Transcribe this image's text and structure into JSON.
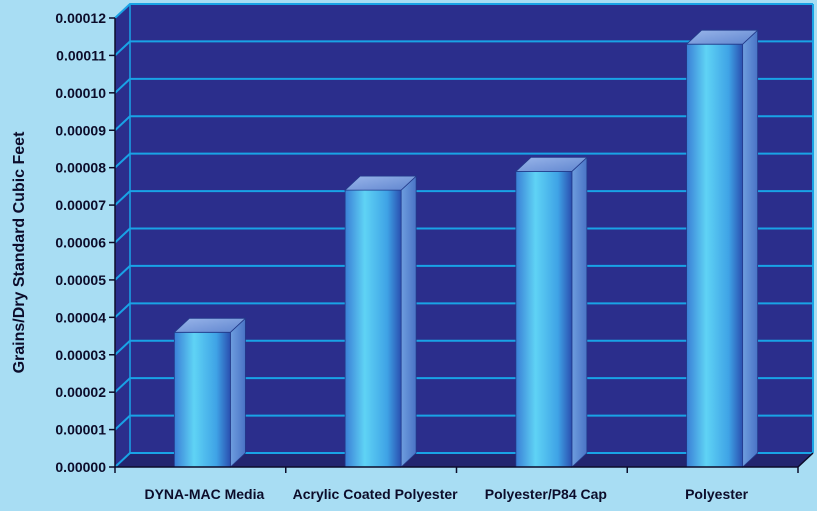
{
  "chart_data": {
    "type": "bar",
    "title": "",
    "xlabel": "",
    "ylabel": "Grains/Dry Standard Cubic Feet",
    "categories": [
      "DYNA-MAC Media",
      "Acrylic Coated Polyester",
      "Polyester/P84 Cap",
      "Polyester"
    ],
    "values": [
      3.6e-05,
      7.4e-05,
      7.9e-05,
      0.000113
    ],
    "ylim": [
      0,
      0.00012
    ],
    "yticks": [
      "0.00000",
      "0.00001",
      "0.00002",
      "0.00003",
      "0.00004",
      "0.00005",
      "0.00006",
      "0.00007",
      "0.00008",
      "0.00009",
      "0.00010",
      "0.00011",
      "0.00012"
    ],
    "grid": true,
    "legend": "none"
  },
  "colors": {
    "page_background": "#a8ddf3",
    "plot_background": "#2b2e8c",
    "floor": "#23256f",
    "gridline": "#19a3e6",
    "bar_light": "#5fd3f5",
    "bar_dark": "#2a4fb0"
  }
}
